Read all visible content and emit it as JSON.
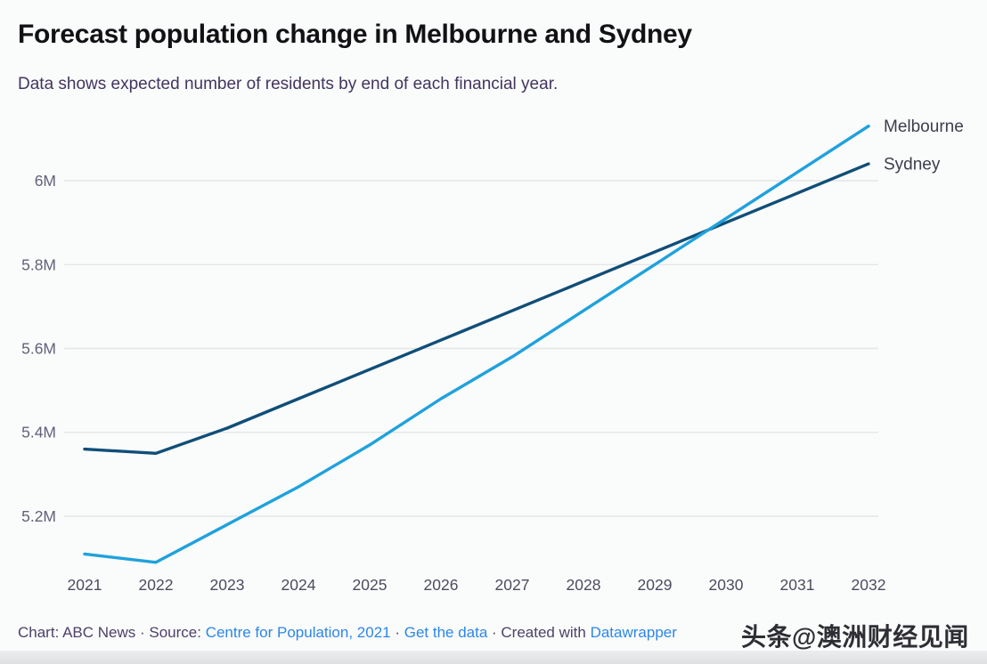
{
  "title": "Forecast population change in Melbourne and Sydney",
  "subtitle": "Data shows expected number of residents by end of each financial year.",
  "watermark": "头条@澳洲财经见闻",
  "footer": {
    "prefix": "Chart: ABC News · Source: ",
    "source_link": "Centre for Population, 2021",
    "sep1": " · ",
    "get_data_link": "Get the data",
    "sep2": " · Created with ",
    "tool_link": "Datawrapper"
  },
  "colors": {
    "melbourne_line": "#1fa2dc",
    "sydney_line": "#104e78",
    "link": "#2c87e6",
    "gridline": "#e4e6e8",
    "footer_text": "#4e4168",
    "title_text": "#121216",
    "subtitle_text": "#43355e"
  },
  "chart_data": {
    "type": "line",
    "title": "Forecast population change in Melbourne and Sydney",
    "subtitle": "Data shows expected number of residents by end of each financial year.",
    "x": [
      2021,
      2022,
      2023,
      2024,
      2025,
      2026,
      2027,
      2028,
      2029,
      2030,
      2031,
      2032
    ],
    "series": [
      {
        "name": "Melbourne",
        "color": "#1fa2dc",
        "values": [
          5.11,
          5.09,
          5.18,
          5.27,
          5.37,
          5.48,
          5.58,
          5.69,
          5.8,
          5.91,
          6.02,
          6.13
        ]
      },
      {
        "name": "Sydney",
        "color": "#104e78",
        "values": [
          5.36,
          5.35,
          5.41,
          5.48,
          5.55,
          5.62,
          5.69,
          5.76,
          5.83,
          5.9,
          5.97,
          6.04
        ]
      }
    ],
    "y_ticks": [
      {
        "value": 5.2,
        "label": "5.2M"
      },
      {
        "value": 5.4,
        "label": "5.4M"
      },
      {
        "value": 5.6,
        "label": "5.6M"
      },
      {
        "value": 5.8,
        "label": "5.8M"
      },
      {
        "value": 6.0,
        "label": "6M"
      }
    ],
    "ylim": [
      5.05,
      6.16
    ],
    "xlabel": "",
    "ylabel": "",
    "unit": "millions of residents",
    "grid": "horizontal",
    "legend": "direct-line-end-labels"
  }
}
